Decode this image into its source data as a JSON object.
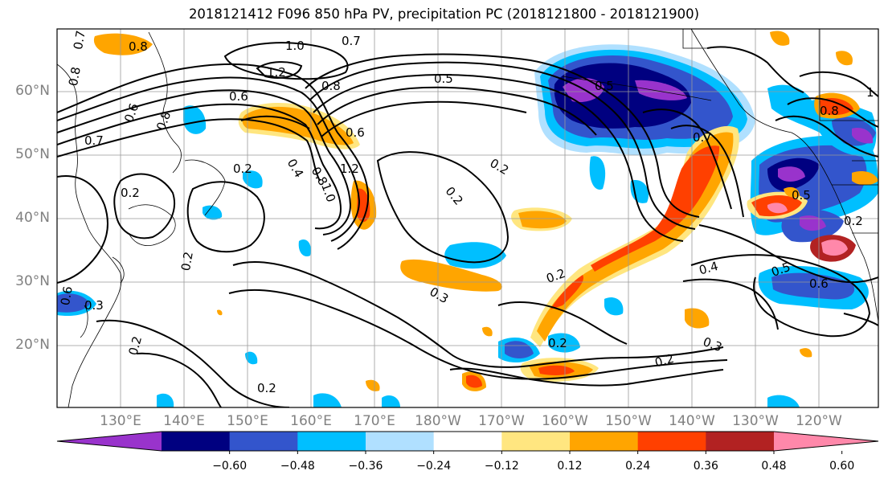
{
  "title": "2018121412 F096 850 hPa PV, precipitation PC (2018121800 - 2018121900)",
  "lat_labels": [
    "60°N",
    "50°N",
    "40°N",
    "30°N",
    "20°N"
  ],
  "lon_labels": [
    "130°E",
    "140°E",
    "150°E",
    "160°E",
    "170°E",
    "180°W",
    "170°W",
    "160°W",
    "150°W",
    "140°W",
    "130°W",
    "120°W"
  ],
  "colorbar": {
    "ticks": [
      "−0.60",
      "−0.48",
      "−0.36",
      "−0.24",
      "−0.12",
      "0.12",
      "0.24",
      "0.36",
      "0.48",
      "0.60"
    ],
    "colors": [
      "#9933cc",
      "#000080",
      "#3355cc",
      "#00bfff",
      "#b0e0ff",
      "#ffffff",
      "#ffe680",
      "#ffa500",
      "#ff4000",
      "#b22222",
      "#ff88aa"
    ]
  },
  "contour_labels": [
    "0.8",
    "0.7",
    "1.0",
    "0.7",
    "1.2",
    "0.8",
    "0.6",
    "0.8",
    "0.6",
    "0.8",
    "0.7",
    "0.2",
    "0.5",
    "0.4",
    "0.6",
    "0.8",
    "1.2",
    "1.0",
    "0.2",
    "0.2",
    "0.7",
    "0.2",
    "0.5",
    "0.2",
    "0.3",
    "0.4",
    "0.5",
    "0.6",
    "0.3",
    "0.3",
    "0.2",
    "0.2",
    "0.2",
    "0.2",
    "0.2",
    "0.8",
    "1",
    "0.5",
    "0.6",
    "0.2"
  ]
}
